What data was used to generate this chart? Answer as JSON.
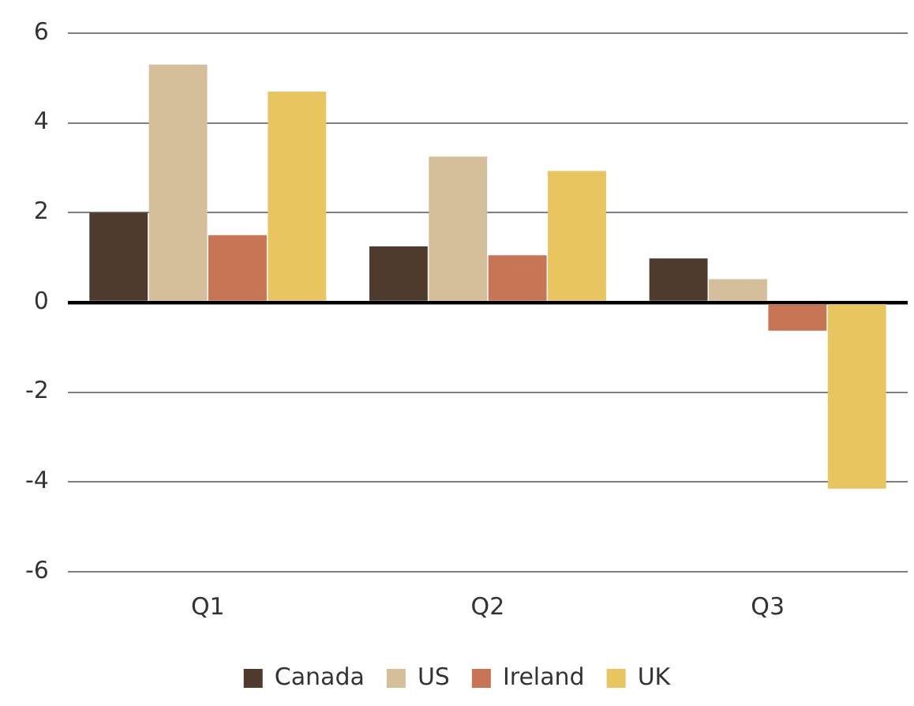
{
  "chart_data": {
    "type": "bar",
    "categories": [
      "Q1",
      "Q2",
      "Q3"
    ],
    "series": [
      {
        "name": "Canada",
        "color": "#4e3b2e",
        "values": [
          2.0,
          1.25,
          0.98
        ]
      },
      {
        "name": "US",
        "color": "#d4bf9a",
        "values": [
          5.3,
          3.25,
          0.52
        ]
      },
      {
        "name": "Ireland",
        "color": "#c87556",
        "values": [
          1.5,
          1.05,
          -0.63
        ]
      },
      {
        "name": "UK",
        "color": "#e9c560",
        "values": [
          4.7,
          2.93,
          -4.15
        ]
      }
    ],
    "ylim": [
      -6,
      6
    ],
    "yticks": [
      -6,
      -4,
      -2,
      0,
      2,
      4,
      6
    ],
    "grid": "y",
    "legend": "bottom"
  }
}
